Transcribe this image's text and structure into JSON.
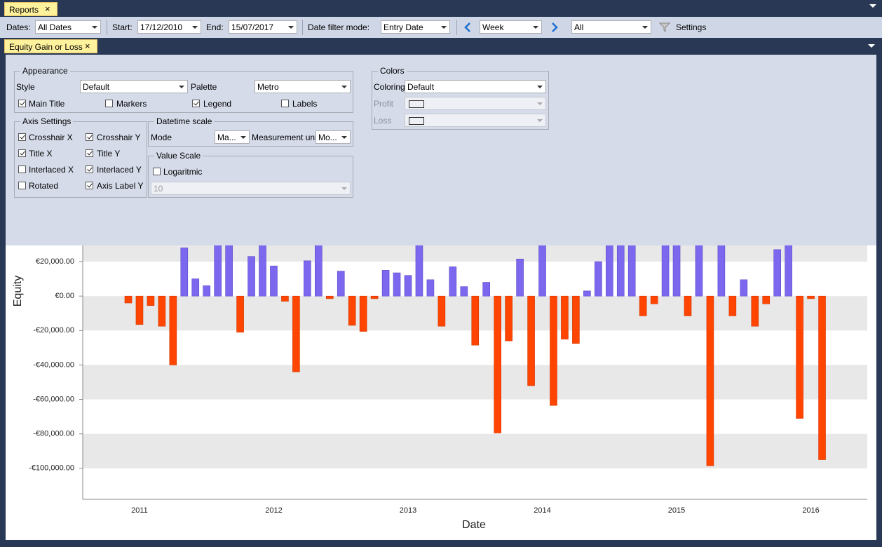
{
  "tabs": {
    "main": "Reports",
    "sub": "Equity Gain or Loss"
  },
  "toolbar": {
    "dates_label": "Dates:",
    "dates_value": "All Dates",
    "start_label": "Start:",
    "start_value": "17/12/2010",
    "end_label": "End:",
    "end_value": "15/07/2017",
    "mode_label": "Date filter mode:",
    "mode_value": "Entry Date",
    "period_value": "Week",
    "filter_value": "All",
    "settings": "Settings"
  },
  "appearance": {
    "title": "Appearance",
    "style_label": "Style",
    "style_value": "Default",
    "palette_label": "Palette",
    "palette_value": "Metro",
    "checks": [
      {
        "label": "Main Title",
        "checked": true
      },
      {
        "label": "Markers",
        "checked": false
      },
      {
        "label": "Legend",
        "checked": true
      },
      {
        "label": "Labels",
        "checked": false
      }
    ]
  },
  "axis_settings": {
    "title": "Axis Settings",
    "checks": [
      {
        "label": "Crosshair X",
        "checked": true
      },
      {
        "label": "Crosshair Y",
        "checked": true
      },
      {
        "label": "Title X",
        "checked": true
      },
      {
        "label": "Title Y",
        "checked": true
      },
      {
        "label": "Interlaced X",
        "checked": false
      },
      {
        "label": "Interlaced Y",
        "checked": true
      },
      {
        "label": "Rotated",
        "checked": false
      },
      {
        "label": "Axis Label Y",
        "checked": true
      }
    ]
  },
  "datetime_scale": {
    "title": "Datetime scale",
    "mode_label": "Mode",
    "mode_value": "Ma...",
    "unit_label": "Measurement unit",
    "unit_value": "Mo..."
  },
  "value_scale": {
    "title": "Value Scale",
    "logaritmic": {
      "label": "Logaritmic",
      "checked": false
    },
    "base_value": "10"
  },
  "colors": {
    "title": "Colors",
    "coloring_label": "Coloring",
    "coloring_value": "Default",
    "profit_label": "Profit",
    "loss_label": "Loss"
  },
  "chart_data": {
    "type": "bar",
    "y_title": "Equity",
    "x_title": "Date",
    "categories": [
      null,
      "2011",
      null,
      null,
      null,
      null,
      null,
      null,
      null,
      null,
      null,
      null,
      null,
      "2012",
      null,
      null,
      null,
      null,
      null,
      null,
      null,
      null,
      null,
      null,
      null,
      "2013",
      null,
      null,
      null,
      null,
      null,
      null,
      null,
      null,
      null,
      null,
      null,
      "2014",
      null,
      null,
      null,
      null,
      null,
      null,
      null,
      null,
      null,
      null,
      null,
      "2015",
      null,
      null,
      null,
      null,
      null,
      null,
      null,
      null,
      null,
      null,
      null,
      "2016",
      null
    ],
    "values": [
      -4000,
      -16500,
      -5500,
      -17500,
      -40000,
      28000,
      10000,
      6000,
      30000,
      30000,
      -21000,
      23000,
      30000,
      17500,
      -3000,
      -44000,
      20500,
      30000,
      -1500,
      14500,
      -17000,
      -20500,
      -1500,
      15000,
      13500,
      12000,
      30000,
      9500,
      -17500,
      17000,
      5500,
      -28500,
      8000,
      -79500,
      -26000,
      21500,
      -52000,
      30000,
      -63500,
      -25000,
      -27500,
      3000,
      20000,
      30000,
      30000,
      30000,
      -11500,
      -4500,
      30000,
      30000,
      -11500,
      30000,
      -98500,
      30000,
      -11500,
      9500,
      -17500,
      -4500,
      27000,
      30000,
      -71000,
      -1500,
      -95000
    ],
    "positive_color": "#7b68ee",
    "negative_color": "#ff4500",
    "interlaced": true,
    "ylim": [
      -118000,
      29400
    ],
    "yticks": [
      {
        "value": 20000,
        "label": "€20,000.00"
      },
      {
        "value": 0,
        "label": "€0.00"
      },
      {
        "value": -20000,
        "label": "-€20,000.00"
      },
      {
        "value": -40000,
        "label": "-€40,000.00"
      },
      {
        "value": -60000,
        "label": "-€60,000.00"
      },
      {
        "value": -80000,
        "label": "-€80,000.00"
      },
      {
        "value": -100000,
        "label": "-€100,000.00"
      }
    ]
  }
}
